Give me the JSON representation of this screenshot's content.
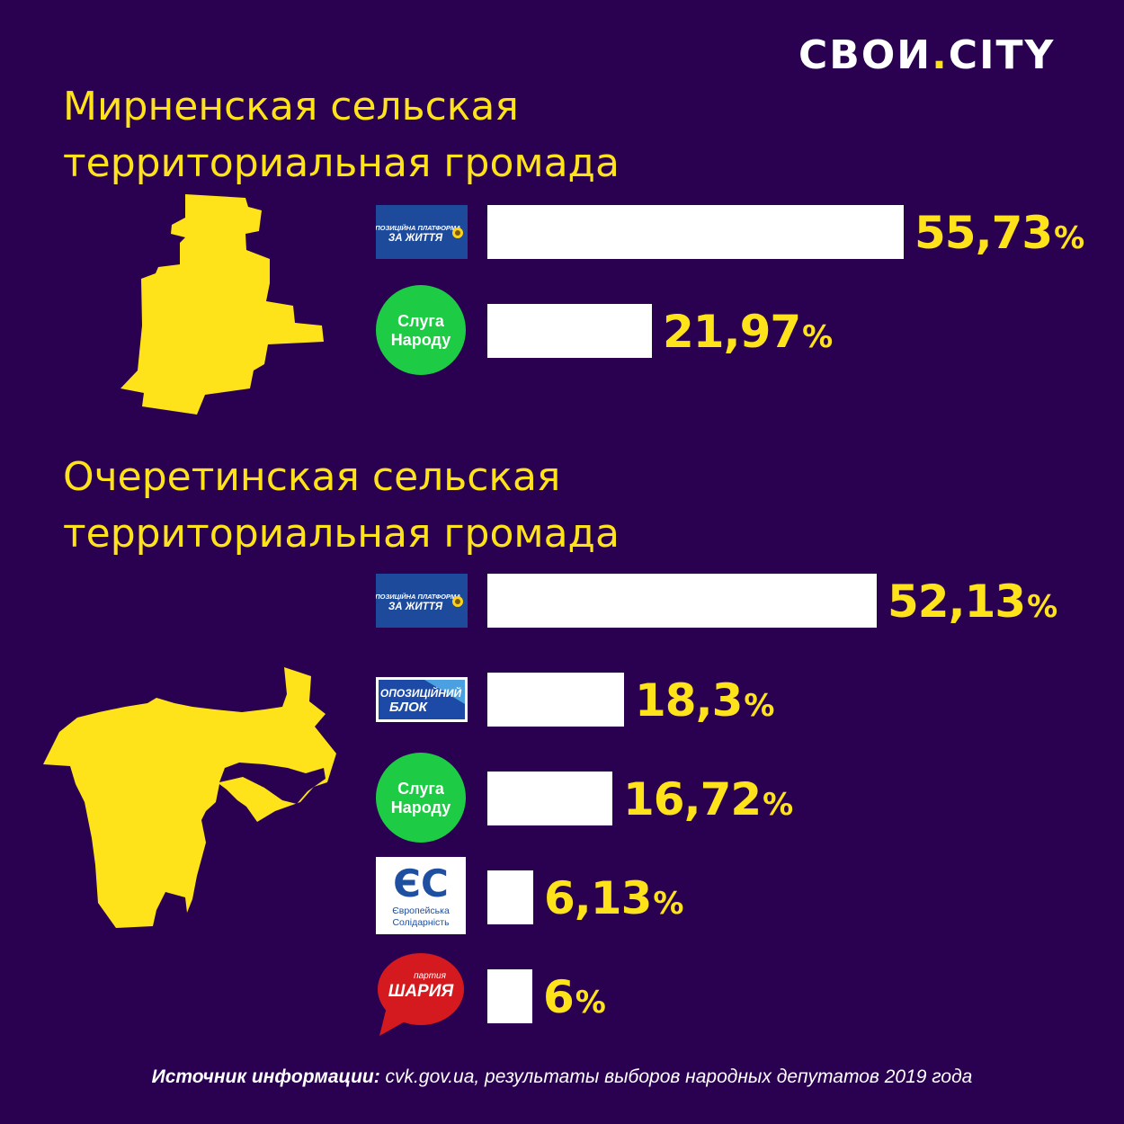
{
  "brand": {
    "name": "СВОИ",
    "dot": ".",
    "suffix": "CITY"
  },
  "colors": {
    "background": "#2a0150",
    "accent": "#ffe31a",
    "bar": "#ffffff"
  },
  "regions": [
    {
      "title_line1": "Мирненская сельская",
      "title_line2": "территориальная громада"
    },
    {
      "title_line1": "Очеретинская сельская",
      "title_line2": "территориальная громада"
    }
  ],
  "logos": {
    "opzzh": {
      "line1": "ОПОЗИЦІЙНА ПЛАТФОРМА",
      "line2": "ЗА ЖИТТЯ",
      "icon": "sunflower-icon"
    },
    "sluga": {
      "line1": "Слуга",
      "line2": "Народу"
    },
    "opoblok": {
      "line1": "ОПОЗИЦІЙНИЙ",
      "line2": "БЛОК"
    },
    "es": {
      "mark": "ЄС",
      "line1": "Європейська",
      "line2": "Солідарність"
    },
    "shariy": {
      "line1": "партия",
      "line2": "ШАРИЯ"
    }
  },
  "chart_data": [
    {
      "type": "bar",
      "orientation": "horizontal",
      "region": "Мирненская сельская территориальная громада",
      "categories": [
        "ОПОЗИЦІЙНА ПЛАТФОРМА ЗА ЖИТТЯ",
        "Слуга Народу"
      ],
      "values": [
        55.73,
        21.97
      ],
      "labels": [
        {
          "num": "55,73",
          "pct": "%"
        },
        {
          "num": "21,97",
          "pct": "%"
        }
      ]
    },
    {
      "type": "bar",
      "orientation": "horizontal",
      "region": "Очеретинская сельская территориальная громада",
      "categories": [
        "ОПОЗИЦІЙНА ПЛАТФОРМА ЗА ЖИТТЯ",
        "ОПОЗИЦІЙНИЙ БЛОК",
        "Слуга Народу",
        "Європейська Солідарність",
        "партия ШАРИЯ"
      ],
      "values": [
        52.13,
        18.3,
        16.72,
        6.13,
        6
      ],
      "labels": [
        {
          "num": "52,13",
          "pct": "%"
        },
        {
          "num": "18,3",
          "pct": "%"
        },
        {
          "num": "16,72",
          "pct": "%"
        },
        {
          "num": "6,13",
          "pct": "%"
        },
        {
          "num": "6",
          "pct": "%"
        }
      ]
    }
  ],
  "source": {
    "label": "Источник информации:",
    "text": " cvk.gov.ua, результаты выборов народных депутатов 2019 года"
  }
}
